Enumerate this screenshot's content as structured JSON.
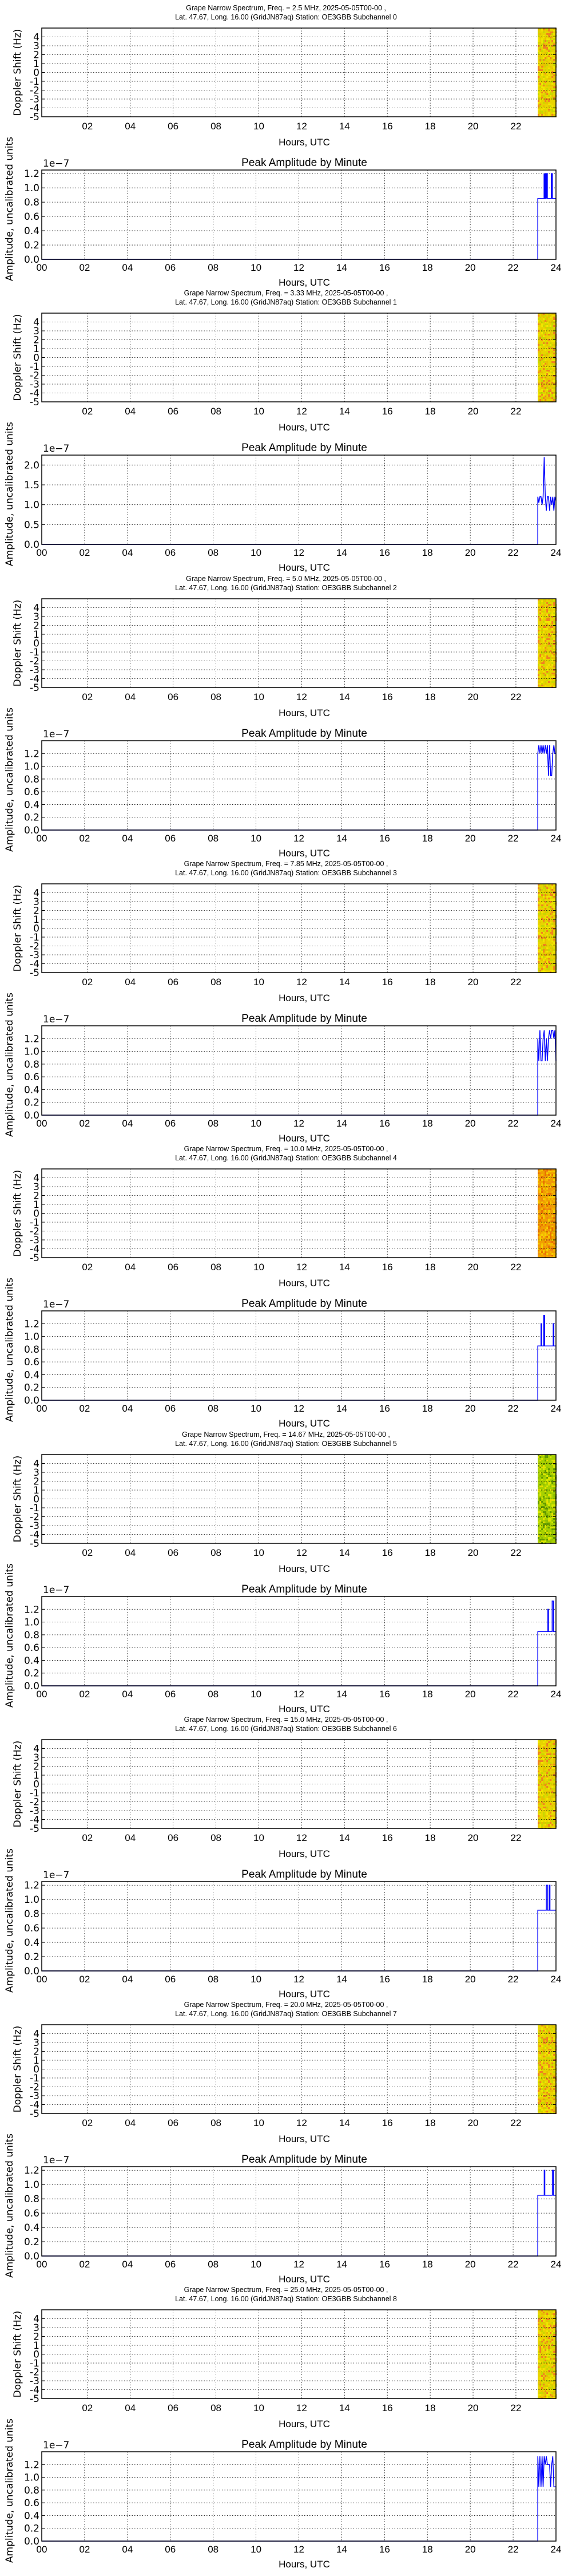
{
  "common": {
    "spectrogram_title_line2_prefix": "Lat.  47.67, Long.  16.00 (GridJN87aq) Station: OE3GBB Subchannel ",
    "spectrogram_ylabel": "Doppler Shift (Hz)",
    "spectrogram_yticks": [
      "4",
      "3",
      "2",
      "1",
      "0",
      "-1",
      "-2",
      "-3",
      "-4",
      "-5"
    ],
    "spectrogram_xticks": [
      "02",
      "04",
      "06",
      "08",
      "10",
      "12",
      "14",
      "16",
      "18",
      "20",
      "22"
    ],
    "amplitude_title": "Peak Amplitude by Minute",
    "amplitude_ylabel": "Amplitude, uncalibrated units",
    "amplitude_exponent": "1e−7",
    "amplitude_xticks": [
      "00",
      "02",
      "04",
      "06",
      "08",
      "10",
      "12",
      "14",
      "16",
      "18",
      "20",
      "22",
      "24"
    ],
    "xlabel": "Hours, UTC",
    "line_color": "#0000ff",
    "grid_color": "#000000"
  },
  "chart_data": [
    {
      "type": "heatmap",
      "title": "Grape Narrow Spectrum, Freq. = 2.5 MHz, 2025-05-05T00-00 ,",
      "subtitle": "Lat.  47.67, Long.  16.00 (GridJN87aq) Station: OE3GBB Subchannel 0",
      "xlabel": "Hours, UTC",
      "ylabel": "Doppler Shift (Hz)",
      "ylim": [
        -5,
        5
      ],
      "data_start_hour": 23.15,
      "band_color": "#e8d400",
      "band_colors": [
        "#f2e600",
        "#e8c000",
        "#f08020",
        "#c8d800"
      ]
    },
    {
      "type": "line",
      "title": "Peak Amplitude by Minute",
      "xlabel": "Hours, UTC",
      "ylabel": "Amplitude, uncalibrated units",
      "y_scale": "1e-7",
      "ylim": [
        0,
        1.25
      ],
      "yticks": [
        "0.0",
        "0.2",
        "0.4",
        "0.6",
        "0.8",
        "1.0",
        "1.2"
      ],
      "x": [
        0,
        23.15,
        23.15,
        23.5,
        23.5,
        23.6,
        23.6,
        23.78,
        23.78,
        23.83,
        23.83,
        24
      ],
      "y": [
        0,
        0,
        0.85,
        0.85,
        1.2,
        1.2,
        0.85,
        0.85,
        1.2,
        1.2,
        0.85,
        0.85
      ],
      "spikes": [
        [
          23.45,
          1.2
        ],
        [
          23.5,
          1.2
        ],
        [
          23.55,
          1.2
        ],
        [
          23.82,
          1.2
        ]
      ]
    },
    {
      "type": "heatmap",
      "title": "Grape Narrow Spectrum, Freq. = 3.33 MHz, 2025-05-05T00-00 ,",
      "subtitle": "Lat.  47.67, Long.  16.00 (GridJN87aq) Station: OE3GBB Subchannel 1",
      "xlabel": "Hours, UTC",
      "ylabel": "Doppler Shift (Hz)",
      "ylim": [
        -5,
        5
      ],
      "data_start_hour": 23.15,
      "band_color": "#e8d400",
      "band_colors": [
        "#f2e600",
        "#e8c000",
        "#f08020",
        "#c8d800"
      ]
    },
    {
      "type": "line",
      "title": "Peak Amplitude by Minute",
      "xlabel": "Hours, UTC",
      "ylabel": "Amplitude, uncalibrated units",
      "y_scale": "1e-7",
      "ylim": [
        0,
        2.25
      ],
      "yticks": [
        "0.0",
        "0.5",
        "1.0",
        "1.5",
        "2.0"
      ],
      "x": [
        0,
        23.15,
        23.15,
        23.2,
        23.25,
        23.3,
        23.35,
        23.4,
        23.45,
        23.5,
        23.55,
        23.6,
        23.65,
        23.7,
        23.75,
        23.8,
        23.85,
        23.9,
        23.95,
        24
      ],
      "y": [
        0,
        0,
        1.2,
        1.05,
        1.2,
        1.2,
        1.0,
        1.2,
        2.2,
        1.2,
        0.85,
        1.2,
        1.2,
        0.85,
        1.2,
        1.0,
        1.2,
        0.85,
        1.2,
        1.1
      ]
    },
    {
      "type": "heatmap",
      "title": "Grape Narrow Spectrum, Freq. = 5.0 MHz, 2025-05-05T00-00 ,",
      "subtitle": "Lat.  47.67, Long.  16.00 (GridJN87aq) Station: OE3GBB Subchannel 2",
      "xlabel": "Hours, UTC",
      "ylabel": "Doppler Shift (Hz)",
      "ylim": [
        -5,
        5
      ],
      "data_start_hour": 23.15,
      "band_color": "#e8d400",
      "band_colors": [
        "#f2e600",
        "#e8c000",
        "#f08020",
        "#c8d800"
      ]
    },
    {
      "type": "line",
      "title": "Peak Amplitude by Minute",
      "xlabel": "Hours, UTC",
      "ylabel": "Amplitude, uncalibrated units",
      "y_scale": "1e-7",
      "ylim": [
        0,
        1.4
      ],
      "yticks": [
        "0.0",
        "0.2",
        "0.4",
        "0.6",
        "0.8",
        "1.0",
        "1.2"
      ],
      "x": [
        0,
        23.15,
        23.15,
        23.2,
        23.25,
        23.3,
        23.35,
        23.4,
        23.45,
        23.5,
        23.55,
        23.6,
        23.65,
        23.7,
        23.75,
        23.8,
        23.85,
        23.9,
        23.95,
        24
      ],
      "y": [
        0,
        0,
        1.2,
        1.33,
        1.2,
        1.33,
        1.2,
        1.33,
        1.2,
        1.33,
        1.2,
        1.33,
        0.85,
        1.33,
        0.85,
        0.85,
        1.2,
        1.33,
        1.2,
        1.2
      ]
    },
    {
      "type": "heatmap",
      "title": "Grape Narrow Spectrum, Freq. = 7.85 MHz, 2025-05-05T00-00 ,",
      "subtitle": "Lat.  47.67, Long.  16.00 (GridJN87aq) Station: OE3GBB Subchannel 3",
      "xlabel": "Hours, UTC",
      "ylabel": "Doppler Shift (Hz)",
      "ylim": [
        -5,
        5
      ],
      "data_start_hour": 23.15,
      "band_color": "#e8d400",
      "band_colors": [
        "#f2e600",
        "#e8c000",
        "#f08020",
        "#c8d800"
      ]
    },
    {
      "type": "line",
      "title": "Peak Amplitude by Minute",
      "xlabel": "Hours, UTC",
      "ylabel": "Amplitude, uncalibrated units",
      "y_scale": "1e-7",
      "ylim": [
        0,
        1.4
      ],
      "yticks": [
        "0.0",
        "0.2",
        "0.4",
        "0.6",
        "0.8",
        "1.0",
        "1.2"
      ],
      "x": [
        0,
        23.15,
        23.15,
        23.2,
        23.25,
        23.3,
        23.35,
        23.4,
        23.45,
        23.5,
        23.55,
        23.6,
        23.65,
        23.7,
        23.75,
        23.8,
        23.85,
        23.9,
        23.95,
        24
      ],
      "y": [
        0,
        0,
        1.2,
        0.85,
        1.33,
        0.85,
        0.85,
        1.2,
        1.33,
        0.85,
        1.2,
        0.85,
        1.2,
        1.33,
        1.2,
        1.33,
        1.33,
        1.2,
        1.33,
        0.85
      ]
    },
    {
      "type": "heatmap",
      "title": "Grape Narrow Spectrum, Freq. = 10.0 MHz, 2025-05-05T00-00 ,",
      "subtitle": "Lat.  47.67, Long.  16.00 (GridJN87aq) Station: OE3GBB Subchannel 4",
      "xlabel": "Hours, UTC",
      "ylabel": "Doppler Shift (Hz)",
      "ylim": [
        -5,
        5
      ],
      "data_start_hour": 23.15,
      "band_color": "#f0a000",
      "band_colors": [
        "#f5b800",
        "#f08a10",
        "#f5d000",
        "#e87000"
      ]
    },
    {
      "type": "line",
      "title": "Peak Amplitude by Minute",
      "xlabel": "Hours, UTC",
      "ylabel": "Amplitude, uncalibrated units",
      "y_scale": "1e-7",
      "ylim": [
        0,
        1.4
      ],
      "yticks": [
        "0.0",
        "0.2",
        "0.4",
        "0.6",
        "0.8",
        "1.0",
        "1.2"
      ],
      "x": [
        0,
        23.15,
        23.15,
        23.3,
        23.3,
        23.33,
        23.33,
        23.43,
        23.43,
        23.47,
        23.47,
        23.87,
        23.87,
        23.9,
        23.9,
        24
      ],
      "y": [
        0,
        0,
        0.85,
        0.85,
        1.2,
        1.2,
        0.85,
        0.85,
        1.33,
        1.33,
        0.85,
        0.85,
        1.2,
        1.2,
        0.85,
        0.85
      ]
    },
    {
      "type": "heatmap",
      "title": "Grape Narrow Spectrum, Freq. = 14.67 MHz, 2025-05-05T00-00 ,",
      "subtitle": "Lat.  47.67, Long.  16.00 (GridJN87aq) Station: OE3GBB Subchannel 5",
      "xlabel": "Hours, UTC",
      "ylabel": "Doppler Shift (Hz)",
      "ylim": [
        -5,
        5
      ],
      "data_start_hour": 23.15,
      "band_color": "#a8d000",
      "band_colors": [
        "#d8e800",
        "#90c000",
        "#e8e000",
        "#609800"
      ]
    },
    {
      "type": "line",
      "title": "Peak Amplitude by Minute",
      "xlabel": "Hours, UTC",
      "ylabel": "Amplitude, uncalibrated units",
      "y_scale": "1e-7",
      "ylim": [
        0,
        1.4
      ],
      "yticks": [
        "0.0",
        "0.2",
        "0.4",
        "0.6",
        "0.8",
        "1.0",
        "1.2"
      ],
      "x": [
        0,
        23.15,
        23.15,
        23.62,
        23.62,
        23.65,
        23.65,
        23.82,
        23.82,
        23.88,
        23.88,
        24
      ],
      "y": [
        0,
        0,
        0.85,
        0.85,
        1.2,
        1.2,
        0.85,
        0.85,
        1.33,
        1.33,
        0.85,
        0.85
      ]
    },
    {
      "type": "heatmap",
      "title": "Grape Narrow Spectrum, Freq. = 15.0 MHz, 2025-05-05T00-00 ,",
      "subtitle": "Lat.  47.67, Long.  16.00 (GridJN87aq) Station: OE3GBB Subchannel 6",
      "xlabel": "Hours, UTC",
      "ylabel": "Doppler Shift (Hz)",
      "ylim": [
        -5,
        5
      ],
      "data_start_hour": 23.15,
      "band_color": "#e8d400",
      "band_colors": [
        "#f2e600",
        "#e8c000",
        "#f08020",
        "#c8d800"
      ]
    },
    {
      "type": "line",
      "title": "Peak Amplitude by Minute",
      "xlabel": "Hours, UTC",
      "ylabel": "Amplitude, uncalibrated units",
      "y_scale": "1e-7",
      "ylim": [
        0,
        1.25
      ],
      "yticks": [
        "0.0",
        "0.2",
        "0.4",
        "0.6",
        "0.8",
        "1.0",
        "1.2"
      ],
      "x": [
        0,
        23.15,
        23.15,
        23.55,
        23.55,
        23.6,
        23.6,
        23.68,
        23.68,
        23.72,
        23.72,
        24
      ],
      "y": [
        0,
        0,
        0.85,
        0.85,
        1.2,
        1.2,
        0.85,
        0.85,
        1.2,
        1.2,
        0.85,
        0.85
      ]
    },
    {
      "type": "heatmap",
      "title": "Grape Narrow Spectrum, Freq. = 20.0 MHz, 2025-05-05T00-00 ,",
      "subtitle": "Lat.  47.67, Long.  16.00 (GridJN87aq) Station: OE3GBB Subchannel 7",
      "xlabel": "Hours, UTC",
      "ylabel": "Doppler Shift (Hz)",
      "ylim": [
        -5,
        5
      ],
      "data_start_hour": 23.15,
      "band_color": "#e8d400",
      "band_colors": [
        "#f2e600",
        "#e8c000",
        "#f08020",
        "#c8d800"
      ]
    },
    {
      "type": "line",
      "title": "Peak Amplitude by Minute",
      "xlabel": "Hours, UTC",
      "ylabel": "Amplitude, uncalibrated units",
      "y_scale": "1e-7",
      "ylim": [
        0,
        1.25
      ],
      "yticks": [
        "0.0",
        "0.2",
        "0.4",
        "0.6",
        "0.8",
        "1.0",
        "1.2"
      ],
      "x": [
        0,
        23.15,
        23.15,
        23.45,
        23.45,
        23.48,
        23.48,
        23.83,
        23.83,
        23.88,
        23.88,
        24
      ],
      "y": [
        0,
        0,
        0.85,
        0.85,
        1.2,
        1.2,
        0.85,
        0.85,
        1.2,
        1.2,
        0.85,
        0.85
      ]
    },
    {
      "type": "heatmap",
      "title": "Grape Narrow Spectrum, Freq. = 25.0 MHz, 2025-05-05T00-00 ,",
      "subtitle": "Lat.  47.67, Long.  16.00 (GridJN87aq) Station: OE3GBB Subchannel 8",
      "xlabel": "Hours, UTC",
      "ylabel": "Doppler Shift (Hz)",
      "ylim": [
        -5,
        5
      ],
      "data_start_hour": 23.15,
      "band_color": "#e8d400",
      "band_colors": [
        "#f2e600",
        "#e8c000",
        "#f08020",
        "#c8d800"
      ]
    },
    {
      "type": "line",
      "title": "Peak Amplitude by Minute",
      "xlabel": "Hours, UTC",
      "ylabel": "Amplitude, uncalibrated units",
      "y_scale": "1e-7",
      "ylim": [
        0,
        1.4
      ],
      "yticks": [
        "0.0",
        "0.2",
        "0.4",
        "0.6",
        "0.8",
        "1.0",
        "1.2"
      ],
      "x": [
        0,
        23.15,
        23.15,
        23.2,
        23.25,
        23.3,
        23.35,
        23.4,
        23.45,
        23.5,
        23.55,
        23.6,
        23.65,
        23.7,
        23.75,
        23.8,
        23.85,
        23.9,
        23.95,
        24
      ],
      "y": [
        0,
        0,
        1.33,
        0.85,
        1.33,
        0.85,
        1.33,
        0.85,
        1.33,
        1.2,
        1.33,
        1.2,
        1.2,
        1.2,
        0.85,
        1.2,
        1.33,
        0.85,
        0.85,
        0.85
      ]
    }
  ]
}
